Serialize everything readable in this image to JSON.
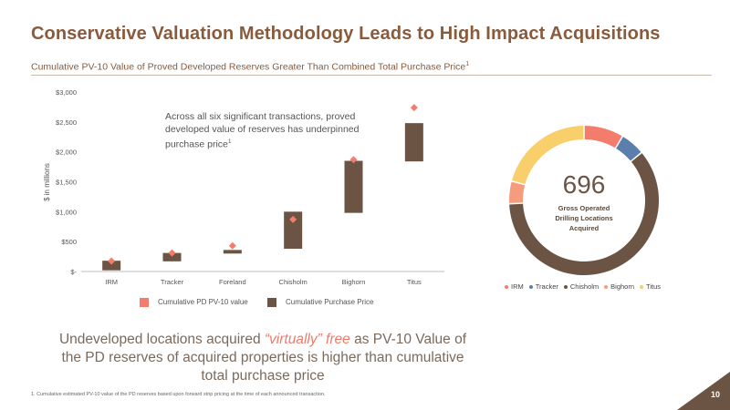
{
  "slide": {
    "title": "Conservative Valuation Methodology Leads to High Impact Acquisitions",
    "subtitle": "Cumulative PV-10 Value of Proved Developed Reserves Greater Than Combined Total Purchase Price",
    "subtitle_sup": "1",
    "callout": "Across all six significant transactions, proved developed value of reserves has underpinned purchase price",
    "callout_sup": "1",
    "bottom_text_pre": "Undeveloped locations acquired ",
    "bottom_text_highlight": "“virtually” free",
    "bottom_text_post": " as PV-10 Value of the PD reserves of acquired properties is higher than cumulative total purchase price",
    "footnote": "1.    Cumulative estimated PV-10 value of the PD reserves based upon forward strip pricing at the time of each announced transaction.",
    "page_number": "10",
    "colors": {
      "accent": "#8a5a3c",
      "highlight": "#f07a6a",
      "corner": "#6b5444"
    }
  },
  "chart_data": [
    {
      "type": "bar",
      "subtype": "floating-bar-with-markers",
      "categories": [
        "IRM",
        "Tracker",
        "Foreland",
        "Chisholm",
        "Bighorn",
        "Titus"
      ],
      "ylabel": "$ in millions",
      "ylim": [
        0,
        3000
      ],
      "yticks": [
        0,
        500,
        1000,
        1500,
        2000,
        2500,
        3000
      ],
      "ytick_labels": [
        "$-",
        "$500",
        "$1,000",
        "$1,500",
        "$2,000",
        "$2,500",
        "$3,000"
      ],
      "series": [
        {
          "name": "Cumulative PD PV-10 value",
          "kind": "marker",
          "color": "#f47c6c",
          "values": [
            175,
            310,
            430,
            870,
            1870,
            2740
          ]
        },
        {
          "name": "Cumulative Purchase Price",
          "kind": "floating-bar",
          "color": "#6b5444",
          "ranges": [
            [
              20,
              180
            ],
            [
              170,
              310
            ],
            [
              300,
              360
            ],
            [
              380,
              1000
            ],
            [
              980,
              1850
            ],
            [
              1840,
              2480
            ]
          ]
        }
      ],
      "legend": [
        "Cumulative PD PV-10 value",
        "Cumulative Purchase Price"
      ],
      "legend_position": "bottom"
    },
    {
      "type": "pie",
      "subtype": "donut",
      "center_value": "696",
      "center_label": "Gross Operated Drilling Locations Acquired",
      "categories": [
        "IRM",
        "Tracker",
        "Chisholm",
        "Bighorn",
        "Titus"
      ],
      "values": [
        60,
        37,
        420,
        34,
        145
      ],
      "colors": [
        "#f47c6c",
        "#5b7fad",
        "#6b5444",
        "#f59c7c",
        "#f8cf6a"
      ],
      "legend_position": "bottom"
    }
  ]
}
